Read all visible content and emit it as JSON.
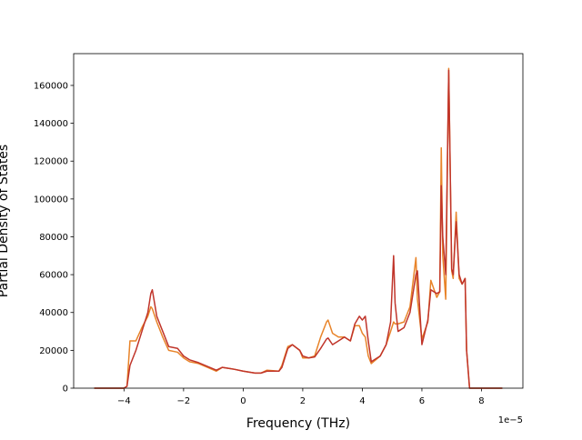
{
  "chart_data": {
    "type": "line",
    "x_label": "Frequency (THz)",
    "y_label": "Partial Density of States",
    "x_offset_label": "1e−5",
    "x": [
      -5,
      -4.0,
      -3.9,
      -3.8,
      -3.6,
      -3.4,
      -3.2,
      -3.1,
      -3.05,
      -2.9,
      -2.7,
      -2.5,
      -2.2,
      -2.0,
      -1.8,
      -1.5,
      -1.2,
      -0.9,
      -0.7,
      -0.3,
      0,
      0.4,
      0.6,
      0.8,
      1.2,
      1.3,
      1.5,
      1.65,
      1.9,
      2.0,
      2.2,
      2.4,
      2.6,
      2.8,
      2.85,
      3.0,
      3.2,
      3.4,
      3.6,
      3.75,
      3.9,
      4.0,
      4.1,
      4.2,
      4.3,
      4.6,
      4.8,
      4.95,
      5.05,
      5.1,
      5.2,
      5.4,
      5.6,
      5.8,
      5.85,
      6.0,
      6.2,
      6.3,
      6.5,
      6.6,
      6.65,
      6.7,
      6.8,
      6.9,
      7.0,
      7.05,
      7.15,
      7.25,
      7.35,
      7.45,
      7.5,
      7.6,
      8.7
    ],
    "series": [
      {
        "color": "#e8842a",
        "values": [
          0,
          0,
          1000,
          25000,
          25000,
          32000,
          38000,
          43000,
          42000,
          35000,
          27000,
          20000,
          19000,
          16000,
          14000,
          13000,
          11000,
          9000,
          11000,
          10000,
          9000,
          8000,
          8000,
          9500,
          9000,
          12000,
          22000,
          23000,
          20000,
          16000,
          16000,
          17000,
          27000,
          35000,
          36000,
          29000,
          27000,
          27000,
          25000,
          33000,
          33000,
          29000,
          27000,
          17000,
          13000,
          17000,
          23000,
          30000,
          35000,
          34000,
          34000,
          35000,
          43000,
          69000,
          47000,
          26000,
          35000,
          57000,
          48000,
          51000,
          127000,
          70000,
          47000,
          169000,
          62000,
          58000,
          93000,
          58000,
          55000,
          58000,
          20000,
          0,
          0
        ]
      },
      {
        "color": "#c0342a",
        "values": [
          0,
          0,
          1000,
          12000,
          20000,
          30000,
          40000,
          50000,
          52000,
          38000,
          30000,
          22000,
          21000,
          17000,
          15000,
          13500,
          11500,
          9500,
          11000,
          10000,
          9000,
          8000,
          8000,
          9000,
          9000,
          11000,
          21000,
          23000,
          20000,
          17000,
          16000,
          16500,
          21000,
          26000,
          26500,
          23000,
          25000,
          27000,
          25000,
          34000,
          38000,
          36000,
          38000,
          25000,
          14000,
          17000,
          23000,
          35000,
          70000,
          45000,
          30000,
          32000,
          40000,
          60000,
          62000,
          23000,
          36000,
          52000,
          50000,
          51000,
          107000,
          80000,
          60000,
          168000,
          63000,
          60000,
          88000,
          60000,
          55000,
          58000,
          20000,
          0,
          0
        ]
      }
    ],
    "xlim": [
      -5.69,
      9.39
    ],
    "xticks": [
      {
        "value": -4,
        "label": "−4"
      },
      {
        "value": -2,
        "label": "−2"
      },
      0,
      2,
      4,
      6,
      8
    ],
    "ylim": [
      0,
      176800
    ],
    "yticks": [
      0,
      20000,
      40000,
      60000,
      80000,
      100000,
      120000,
      140000,
      160000
    ],
    "grid": false
  }
}
